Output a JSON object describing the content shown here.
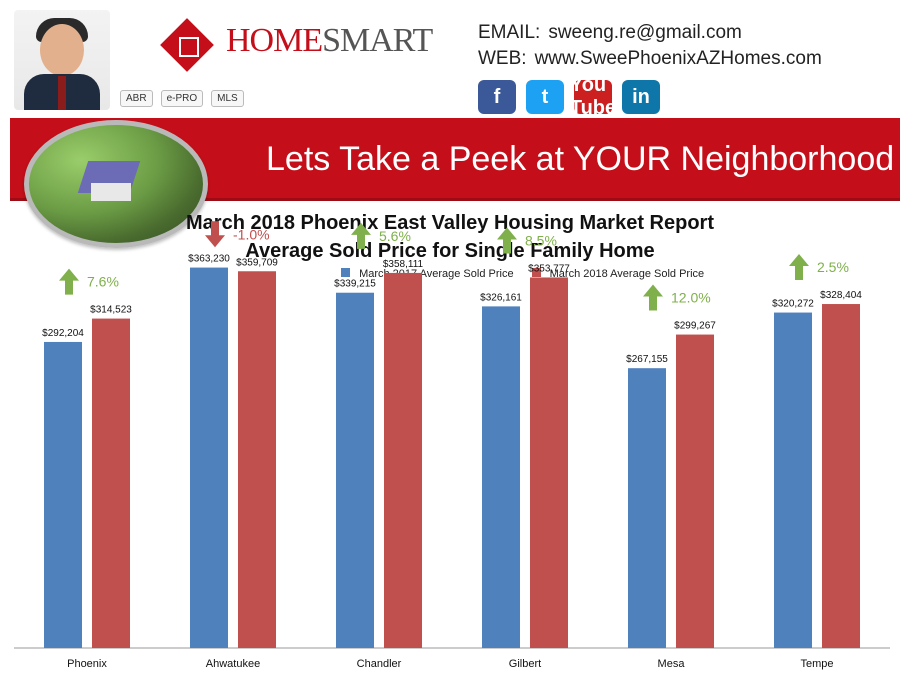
{
  "header": {
    "brand_name_1": "HOME",
    "brand_name_2": "SMART",
    "email": "sweeng.re@gmail.com",
    "web": "www.SweePhoenixAZHomes.com",
    "email_label": "EMAIL:",
    "web_label": "WEB:",
    "badges": [
      "ABR",
      "e-PRO",
      "MLS"
    ],
    "social": [
      "f",
      "t",
      "You Tube",
      "in"
    ]
  },
  "banner": {
    "text": "Lets Take a Peek at YOUR Neighborhood"
  },
  "chart_data": {
    "type": "bar",
    "title": "March 2018 Phoenix East Valley Housing Market Report",
    "subtitle": "Average Sold Price for Single Family Home",
    "categories": [
      "Phoenix",
      "Ahwatukee",
      "Chandler",
      "Gilbert",
      "Mesa",
      "Tempe"
    ],
    "series": [
      {
        "name": "March 2017 Average Sold Price",
        "values": [
          292204,
          363230,
          339215,
          326161,
          267155,
          320272
        ],
        "labels": [
          "$292,204",
          "$363,230",
          "$339,215",
          "$326,161",
          "$267,155",
          "$320,272"
        ]
      },
      {
        "name": "March 2018 Average Sold Price",
        "values": [
          314523,
          359709,
          358111,
          353777,
          299267,
          328404
        ],
        "labels": [
          "$314,523",
          "$359,709",
          "$358,111",
          "$353,777",
          "$299,267",
          "$328,404"
        ]
      }
    ],
    "changes": [
      {
        "text": "7.6%",
        "direction": "up"
      },
      {
        "text": "-1.0%",
        "direction": "down"
      },
      {
        "text": "5.6%",
        "direction": "up"
      },
      {
        "text": "8.5%",
        "direction": "up"
      },
      {
        "text": "12.0%",
        "direction": "up"
      },
      {
        "text": "2.5%",
        "direction": "up"
      }
    ],
    "ylim": [
      0,
      380000
    ],
    "grid": false,
    "legend_position": "top",
    "colors": {
      "series0": "#4f81bd",
      "series1": "#c0504d",
      "up": "#7fb04b",
      "down": "#c0504d"
    }
  }
}
